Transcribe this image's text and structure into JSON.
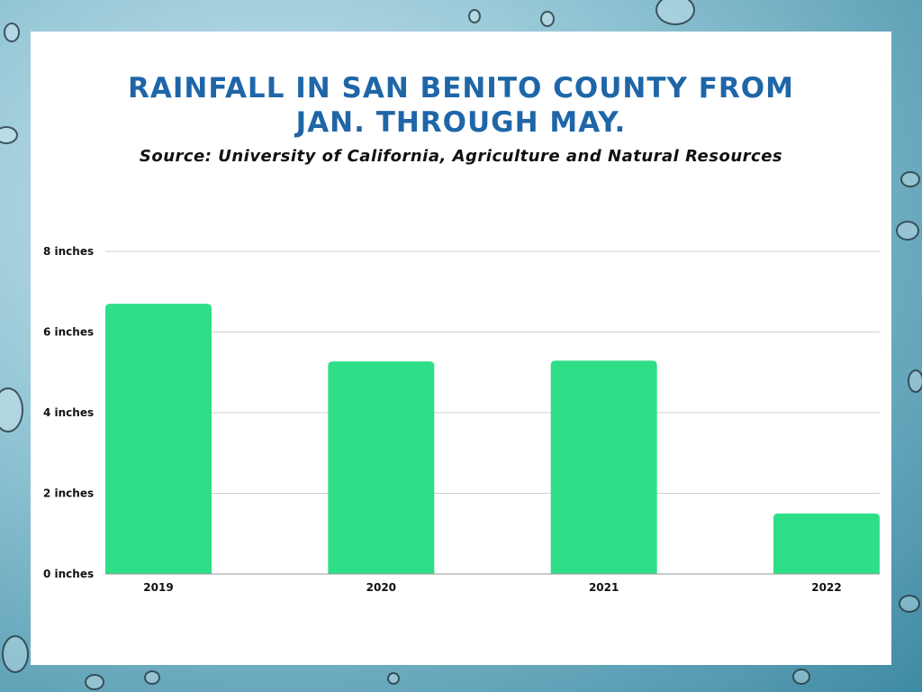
{
  "title_line1": "RAINFALL IN SAN BENITO COUNTY FROM",
  "title_line2": "JAN. THROUGH MAY.",
  "subtitle": "Source: University of California, Agriculture and Natural Resources",
  "colors": {
    "bar": "#2fdf88",
    "title": "#1f66a8",
    "grid": "#d0d0d0",
    "axis": "#999999"
  },
  "chart_data": {
    "type": "bar",
    "title": "RAINFALL IN SAN BENITO COUNTY FROM JAN. THROUGH MAY.",
    "categories": [
      "2019",
      "2020",
      "2021",
      "2022"
    ],
    "values": [
      6.7,
      5.27,
      5.29,
      1.5
    ],
    "ylim": [
      0,
      8
    ],
    "yticks": [
      0,
      2,
      4,
      6,
      8
    ],
    "ytick_labels": [
      "0 inches",
      "2 inches",
      "4 inches",
      "6 inches",
      "8 inches"
    ],
    "xlabel": "",
    "ylabel": "",
    "grid": true,
    "legend": "none"
  }
}
